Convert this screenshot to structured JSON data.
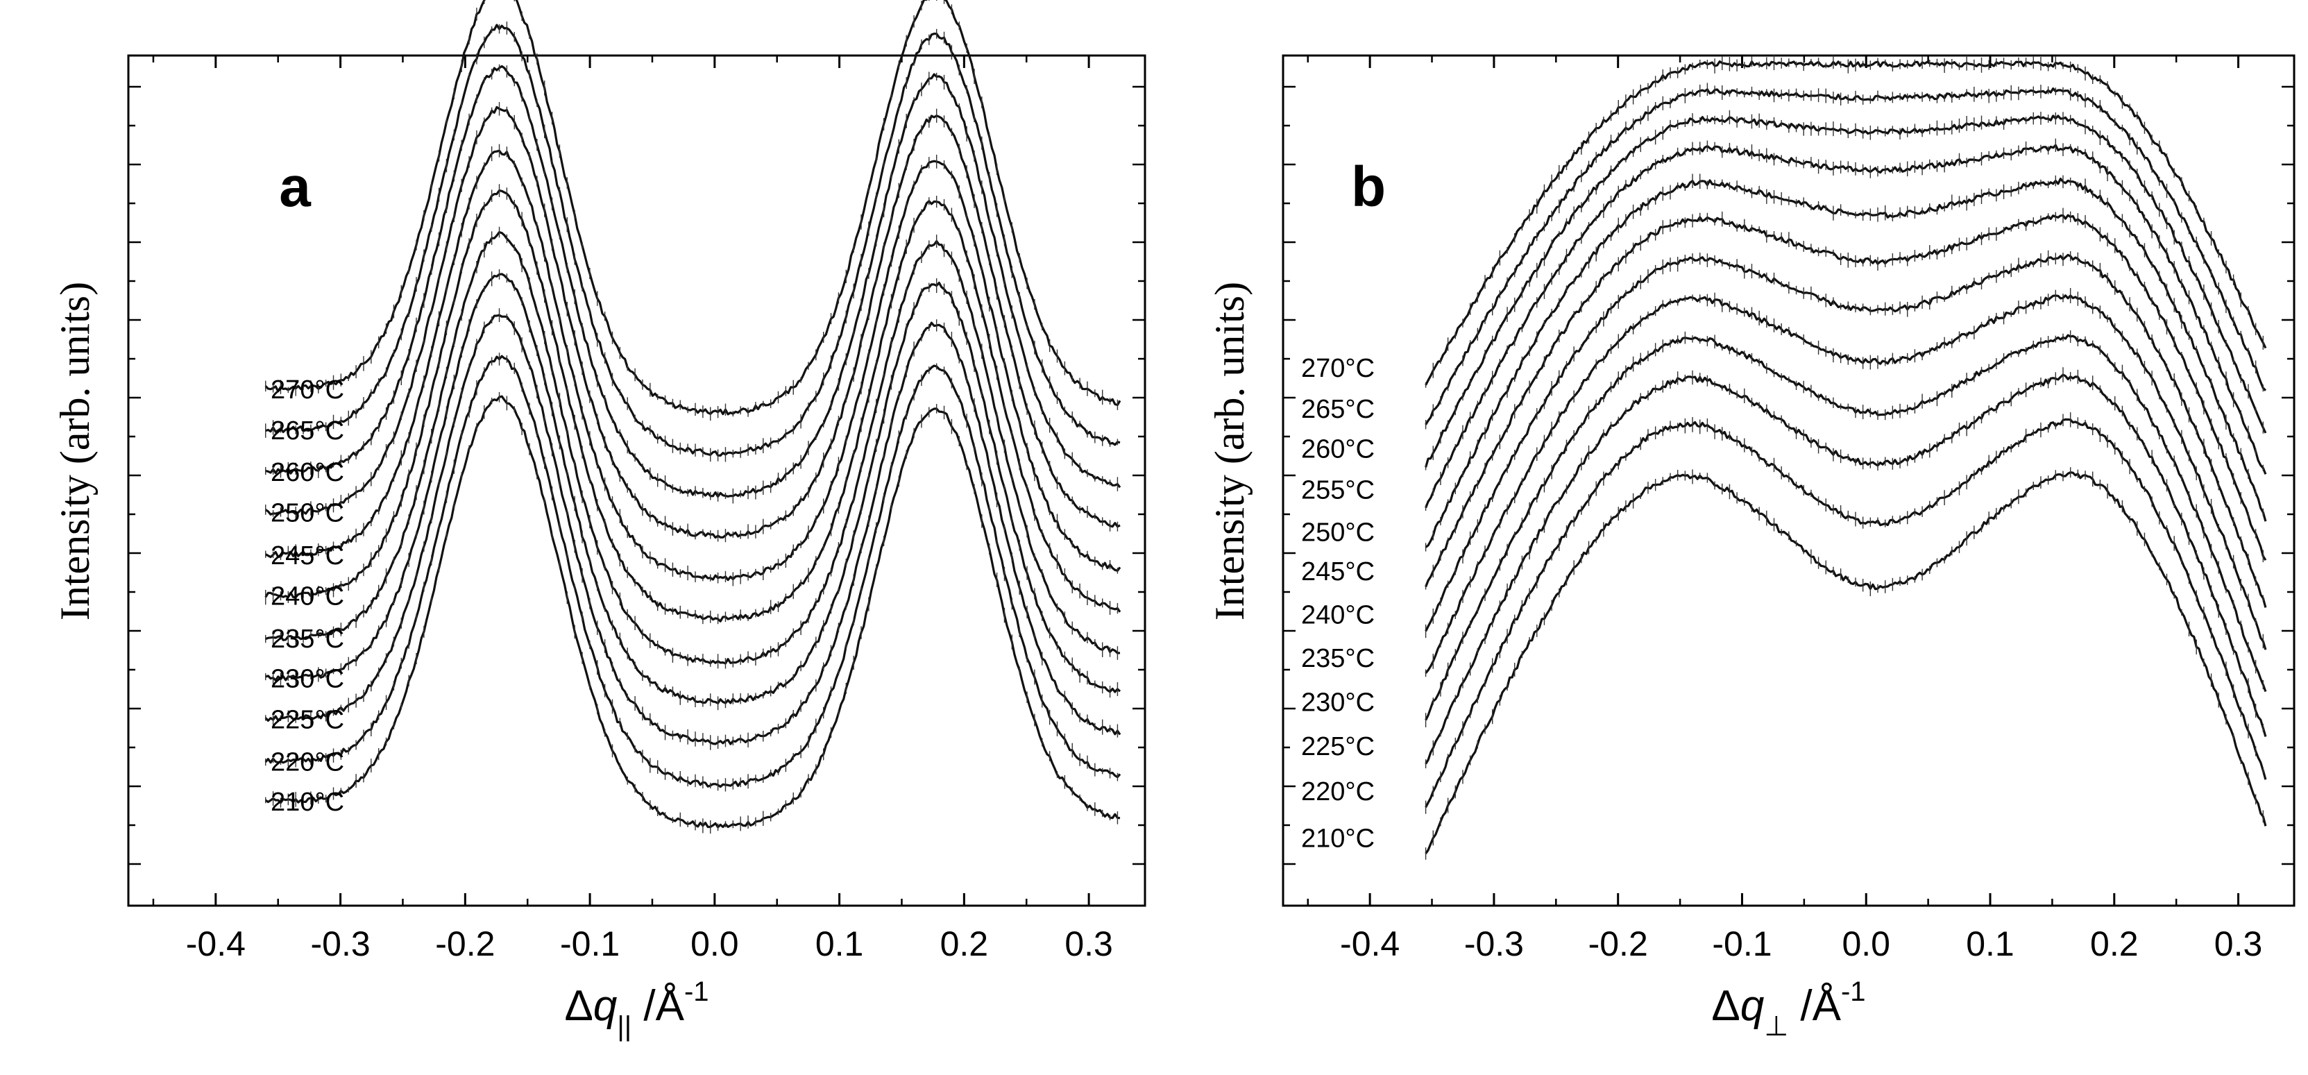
{
  "chart_data": [
    {
      "id": "a",
      "type": "line",
      "panel_label": "a",
      "title": "",
      "xlabel": {
        "prefix": "Δq",
        "subscript": "||",
        "suffix": " /Å",
        "sup": "-1"
      },
      "ylabel": "Intensity (arb. units)",
      "xlim": [
        -0.47,
        0.345
      ],
      "ylim": [
        0,
        1.0
      ],
      "xticks": [
        -0.4,
        -0.3,
        -0.2,
        -0.1,
        0.0,
        0.1,
        0.2,
        0.3
      ],
      "xtick_labels": [
        "-0.4",
        "-0.3",
        "-0.2",
        "-0.1",
        "0.0",
        "0.1",
        "0.2",
        "0.3"
      ],
      "x_range": [
        -0.36,
        0.325
      ],
      "peak_positions": [
        -0.172,
        0.177
      ],
      "peak_width": 0.047,
      "peak_height": 0.48,
      "series": [
        {
          "name": "210°C",
          "label": "210°C",
          "baseline": 0.105,
          "min_offset": -0.045,
          "edge_left": 0.018,
          "edge_right": -0.005
        },
        {
          "name": "220°C",
          "label": "220°C",
          "baseline": 0.155,
          "min_offset": -0.045,
          "edge_left": 0.015,
          "edge_right": -0.005
        },
        {
          "name": "225°C",
          "label": "225°C",
          "baseline": 0.205,
          "min_offset": -0.045,
          "edge_left": 0.015,
          "edge_right": -0.005
        },
        {
          "name": "230°C",
          "label": "230°C",
          "baseline": 0.253,
          "min_offset": -0.045,
          "edge_left": 0.015,
          "edge_right": -0.005
        },
        {
          "name": "235°C",
          "label": "235°C",
          "baseline": 0.3,
          "min_offset": -0.045,
          "edge_left": 0.015,
          "edge_right": -0.005
        },
        {
          "name": "240°C",
          "label": "240°C",
          "baseline": 0.35,
          "min_offset": -0.045,
          "edge_left": 0.015,
          "edge_right": -0.005
        },
        {
          "name": "245°C",
          "label": "245°C",
          "baseline": 0.398,
          "min_offset": -0.045,
          "edge_left": 0.015,
          "edge_right": -0.005
        },
        {
          "name": "250°C",
          "label": "250°C",
          "baseline": 0.448,
          "min_offset": -0.045,
          "edge_left": 0.015,
          "edge_right": -0.005
        },
        {
          "name": "260°C",
          "label": "260°C",
          "baseline": 0.496,
          "min_offset": -0.045,
          "edge_left": 0.015,
          "edge_right": -0.005
        },
        {
          "name": "265°C",
          "label": "265°C",
          "baseline": 0.545,
          "min_offset": -0.045,
          "edge_left": 0.015,
          "edge_right": -0.005
        },
        {
          "name": "270°C",
          "label": "270°C",
          "baseline": 0.593,
          "min_offset": -0.045,
          "edge_left": 0.015,
          "edge_right": -0.005
        }
      ]
    },
    {
      "id": "b",
      "type": "line",
      "panel_label": "b",
      "title": "",
      "xlabel": {
        "prefix": "Δq",
        "subscript": "⊥",
        "suffix": " /Å",
        "sup": "-1"
      },
      "ylabel": "Intensity (arb. units)",
      "xlim": [
        -0.47,
        0.345
      ],
      "ylim": [
        0,
        1.0
      ],
      "xticks": [
        -0.4,
        -0.3,
        -0.2,
        -0.1,
        0.0,
        0.1,
        0.2,
        0.3
      ],
      "xtick_labels": [
        "-0.4",
        "-0.3",
        "-0.2",
        "-0.1",
        "0.0",
        "0.1",
        "0.2",
        "0.3"
      ],
      "x_range": [
        -0.355,
        0.322
      ],
      "series": [
        {
          "name": "210°C",
          "label": "210°C",
          "center": 0.53,
          "dip": 0.155,
          "left_end": 0.06,
          "right_end": 0.095
        },
        {
          "name": "220°C",
          "label": "220°C",
          "center": 0.59,
          "dip": 0.14,
          "left_end": 0.115,
          "right_end": 0.15
        },
        {
          "name": "225°C",
          "label": "225°C",
          "center": 0.64,
          "dip": 0.12,
          "left_end": 0.168,
          "right_end": 0.2
        },
        {
          "name": "230°C",
          "label": "230°C",
          "center": 0.685,
          "dip": 0.105,
          "left_end": 0.22,
          "right_end": 0.25
        },
        {
          "name": "235°C",
          "label": "235°C",
          "center": 0.73,
          "dip": 0.09,
          "left_end": 0.272,
          "right_end": 0.302
        },
        {
          "name": "240°C",
          "label": "240°C",
          "center": 0.775,
          "dip": 0.075,
          "left_end": 0.323,
          "right_end": 0.352
        },
        {
          "name": "245°C",
          "label": "245°C",
          "center": 0.82,
          "dip": 0.062,
          "left_end": 0.374,
          "right_end": 0.405
        },
        {
          "name": "250°C",
          "label": "250°C",
          "center": 0.86,
          "dip": 0.048,
          "left_end": 0.42,
          "right_end": 0.455
        },
        {
          "name": "255°C",
          "label": "255°C",
          "center": 0.897,
          "dip": 0.032,
          "left_end": 0.47,
          "right_end": 0.505
        },
        {
          "name": "260°C",
          "label": "260°C",
          "center": 0.93,
          "dip": 0.02,
          "left_end": 0.518,
          "right_end": 0.555
        },
        {
          "name": "265°C",
          "label": "265°C",
          "center": 0.96,
          "dip": 0.01,
          "left_end": 0.565,
          "right_end": 0.605
        },
        {
          "name": "270°C",
          "label": "270°C",
          "center": 0.99,
          "dip": 0.0,
          "left_end": 0.613,
          "right_end": 0.655
        }
      ]
    }
  ]
}
